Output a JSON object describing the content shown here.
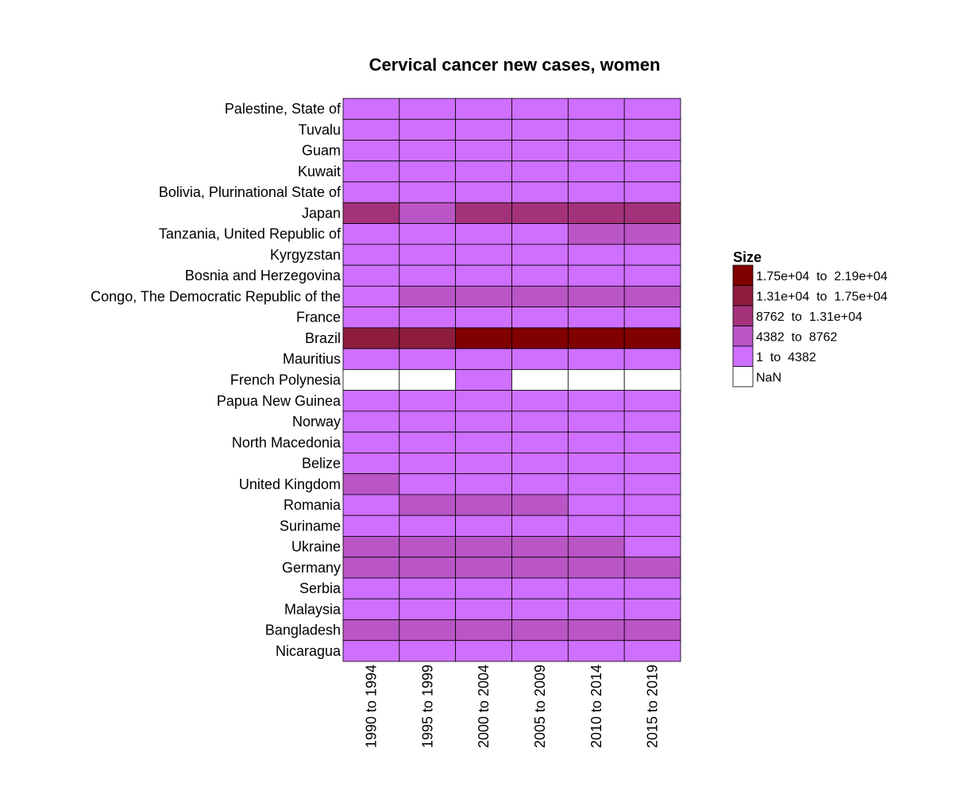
{
  "chart_data": {
    "type": "heatmap",
    "title": "Cervical cancer new cases, women",
    "rows": [
      "Palestine, State of",
      "Tuvalu",
      "Guam",
      "Kuwait",
      "Bolivia, Plurinational State of",
      "Japan",
      "Tanzania, United Republic of",
      "Kyrgyzstan",
      "Bosnia and Herzegovina",
      "Congo, The Democratic Republic of the",
      "France",
      "Brazil",
      "Mauritius",
      "French Polynesia",
      "Papua New Guinea",
      "Norway",
      "North Macedonia",
      "Belize",
      "United Kingdom",
      "Romania",
      "Suriname",
      "Ukraine",
      "Germany",
      "Serbia",
      "Malaysia",
      "Bangladesh",
      "Nicaragua"
    ],
    "columns": [
      "1990 to 1994",
      "1995 to 1999",
      "2000 to 2004",
      "2005 to 2009",
      "2010 to 2014",
      "2015 to 2019"
    ],
    "bin_matrix": [
      [
        0,
        0,
        0,
        0,
        0,
        0
      ],
      [
        0,
        0,
        0,
        0,
        0,
        0
      ],
      [
        0,
        0,
        0,
        0,
        0,
        0
      ],
      [
        0,
        0,
        0,
        0,
        0,
        0
      ],
      [
        0,
        0,
        0,
        0,
        0,
        0
      ],
      [
        2,
        1,
        2,
        2,
        2,
        2
      ],
      [
        0,
        0,
        0,
        0,
        1,
        1
      ],
      [
        0,
        0,
        0,
        0,
        0,
        0
      ],
      [
        0,
        0,
        0,
        0,
        0,
        0
      ],
      [
        0,
        1,
        1,
        1,
        1,
        1
      ],
      [
        0,
        0,
        0,
        0,
        0,
        0
      ],
      [
        3,
        3,
        4,
        4,
        4,
        4
      ],
      [
        0,
        0,
        0,
        0,
        0,
        0
      ],
      [
        null,
        null,
        0,
        null,
        null,
        null
      ],
      [
        0,
        0,
        0,
        0,
        0,
        0
      ],
      [
        0,
        0,
        0,
        0,
        0,
        0
      ],
      [
        0,
        0,
        0,
        0,
        0,
        0
      ],
      [
        0,
        0,
        0,
        0,
        0,
        0
      ],
      [
        1,
        0,
        0,
        0,
        0,
        0
      ],
      [
        0,
        1,
        1,
        1,
        0,
        0
      ],
      [
        0,
        0,
        0,
        0,
        0,
        0
      ],
      [
        1,
        1,
        1,
        1,
        1,
        0
      ],
      [
        1,
        1,
        1,
        1,
        1,
        1
      ],
      [
        0,
        0,
        0,
        0,
        0,
        0
      ],
      [
        0,
        0,
        0,
        0,
        0,
        0
      ],
      [
        1,
        1,
        1,
        1,
        1,
        1
      ],
      [
        0,
        0,
        0,
        0,
        0,
        0
      ]
    ],
    "legend": {
      "title": "Size",
      "position": "right",
      "bins": [
        {
          "label": "1.75e+04  to  2.19e+04",
          "color": "#800000"
        },
        {
          "label": "1.31e+04  to  1.75e+04",
          "color": "#8E1C3E"
        },
        {
          "label": "8762  to  1.31e+04",
          "color": "#A3327A"
        },
        {
          "label": "4382  to  8762",
          "color": "#BA55C6"
        },
        {
          "label": "1  to  4382",
          "color": "#CF6FFF"
        },
        {
          "label": "NaN",
          "color": "#FFFFFF"
        }
      ]
    },
    "bin_colors": [
      "#CF6FFF",
      "#BA55C6",
      "#A3327A",
      "#8E1C3E",
      "#800000"
    ],
    "nan_color": "#FFFFFF",
    "grid": true
  }
}
